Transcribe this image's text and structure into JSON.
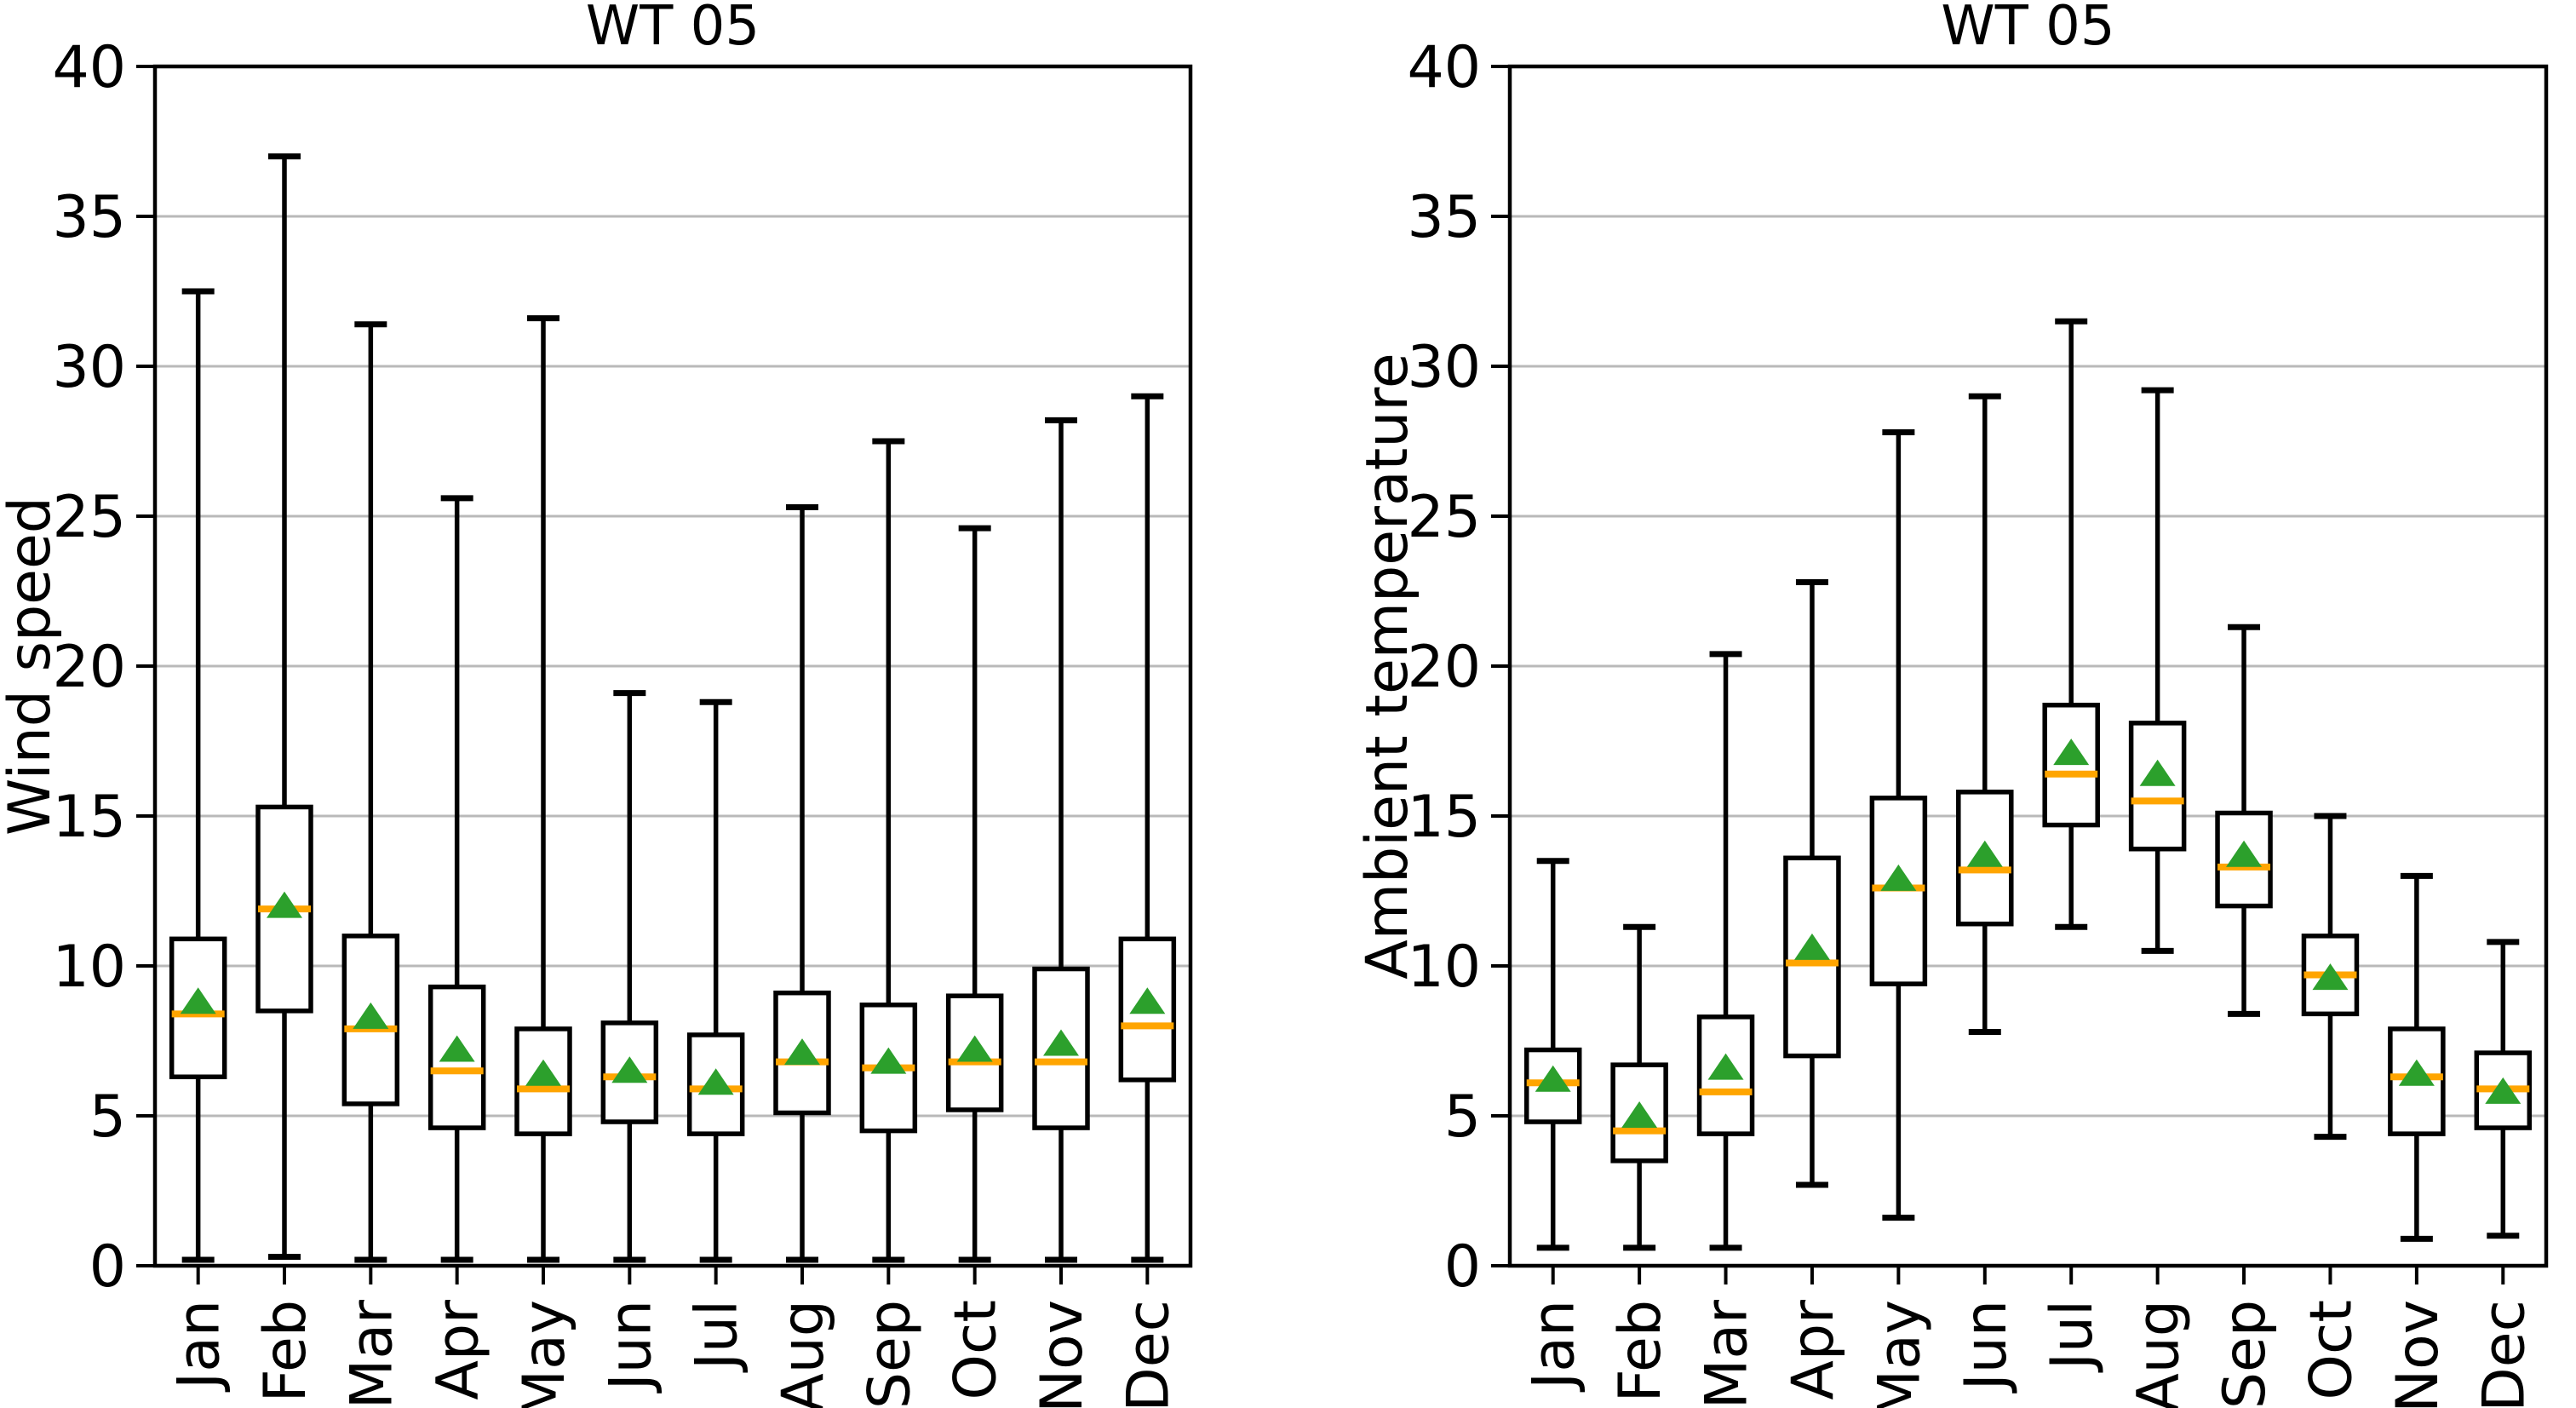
{
  "figure": {
    "background": "#ffffff",
    "titles": [
      "WT 05",
      "WT 05"
    ]
  },
  "chart_data": [
    {
      "type": "box",
      "title": "WT 05",
      "xlabel": "",
      "ylabel": "Wind speed",
      "ylim": [
        0,
        40
      ],
      "yticks": [
        0,
        5,
        10,
        15,
        20,
        25,
        30,
        35,
        40
      ],
      "grid": "horizontal",
      "legend": "none",
      "categories": [
        "Jan",
        "Feb",
        "Mar",
        "Apr",
        "May",
        "Jun",
        "Jul",
        "Aug",
        "Sep",
        "Oct",
        "Nov",
        "Dec"
      ],
      "series": [
        {
          "month": "Jan",
          "whisker_low": 0.2,
          "q1": 6.3,
          "median": 8.4,
          "mean": 8.8,
          "q3": 10.9,
          "whisker_high": 32.5
        },
        {
          "month": "Feb",
          "whisker_low": 0.3,
          "q1": 8.5,
          "median": 11.9,
          "mean": 12.0,
          "q3": 15.3,
          "whisker_high": 37.0
        },
        {
          "month": "Mar",
          "whisker_low": 0.2,
          "q1": 5.4,
          "median": 7.9,
          "mean": 8.3,
          "q3": 11.0,
          "whisker_high": 31.4
        },
        {
          "month": "Apr",
          "whisker_low": 0.2,
          "q1": 4.6,
          "median": 6.5,
          "mean": 7.2,
          "q3": 9.3,
          "whisker_high": 25.6
        },
        {
          "month": "May",
          "whisker_low": 0.2,
          "q1": 4.4,
          "median": 5.9,
          "mean": 6.4,
          "q3": 7.9,
          "whisker_high": 31.6
        },
        {
          "month": "Jun",
          "whisker_low": 0.2,
          "q1": 4.8,
          "median": 6.3,
          "mean": 6.5,
          "q3": 8.1,
          "whisker_high": 19.1
        },
        {
          "month": "Jul",
          "whisker_low": 0.2,
          "q1": 4.4,
          "median": 5.9,
          "mean": 6.1,
          "q3": 7.7,
          "whisker_high": 18.8
        },
        {
          "month": "Aug",
          "whisker_low": 0.2,
          "q1": 5.1,
          "median": 6.8,
          "mean": 7.1,
          "q3": 9.1,
          "whisker_high": 25.3
        },
        {
          "month": "Sep",
          "whisker_low": 0.2,
          "q1": 4.5,
          "median": 6.6,
          "mean": 6.8,
          "q3": 8.7,
          "whisker_high": 27.5
        },
        {
          "month": "Oct",
          "whisker_low": 0.2,
          "q1": 5.2,
          "median": 6.8,
          "mean": 7.2,
          "q3": 9.0,
          "whisker_high": 24.6
        },
        {
          "month": "Nov",
          "whisker_low": 0.2,
          "q1": 4.6,
          "median": 6.8,
          "mean": 7.4,
          "q3": 9.9,
          "whisker_high": 28.2
        },
        {
          "month": "Dec",
          "whisker_low": 0.2,
          "q1": 6.2,
          "median": 8.0,
          "mean": 8.8,
          "q3": 10.9,
          "whisker_high": 29.0
        }
      ],
      "colors": {
        "box": "#000000",
        "median": "#ffa500",
        "mean_marker": "#2ca02c",
        "grid": "#b9b9b9",
        "spine": "#000000"
      }
    },
    {
      "type": "box",
      "title": "WT 05",
      "xlabel": "",
      "ylabel": "Ambient temperature",
      "ylim": [
        0,
        40
      ],
      "yticks": [
        0,
        5,
        10,
        15,
        20,
        25,
        30,
        35,
        40
      ],
      "grid": "horizontal",
      "legend": "none",
      "categories": [
        "Jan",
        "Feb",
        "Mar",
        "Apr",
        "May",
        "Jun",
        "Jul",
        "Aug",
        "Sep",
        "Oct",
        "Nov",
        "Dec"
      ],
      "series": [
        {
          "month": "Jan",
          "whisker_low": 0.6,
          "q1": 4.8,
          "median": 6.1,
          "mean": 6.2,
          "q3": 7.2,
          "whisker_high": 13.5
        },
        {
          "month": "Feb",
          "whisker_low": 0.6,
          "q1": 3.5,
          "median": 4.5,
          "mean": 5.0,
          "q3": 6.7,
          "whisker_high": 11.3
        },
        {
          "month": "Mar",
          "whisker_low": 0.6,
          "q1": 4.4,
          "median": 5.8,
          "mean": 6.6,
          "q3": 8.3,
          "whisker_high": 20.4
        },
        {
          "month": "Apr",
          "whisker_low": 2.7,
          "q1": 7.0,
          "median": 10.1,
          "mean": 10.6,
          "q3": 13.6,
          "whisker_high": 22.8
        },
        {
          "month": "May",
          "whisker_low": 1.6,
          "q1": 9.4,
          "median": 12.6,
          "mean": 12.9,
          "q3": 15.6,
          "whisker_high": 27.8
        },
        {
          "month": "Jun",
          "whisker_low": 7.8,
          "q1": 11.4,
          "median": 13.2,
          "mean": 13.7,
          "q3": 15.8,
          "whisker_high": 29.0
        },
        {
          "month": "Jul",
          "whisker_low": 11.3,
          "q1": 14.7,
          "median": 16.4,
          "mean": 17.1,
          "q3": 18.7,
          "whisker_high": 31.5
        },
        {
          "month": "Aug",
          "whisker_low": 10.5,
          "q1": 13.9,
          "median": 15.5,
          "mean": 16.4,
          "q3": 18.1,
          "whisker_high": 29.2
        },
        {
          "month": "Sep",
          "whisker_low": 8.4,
          "q1": 12.0,
          "median": 13.3,
          "mean": 13.7,
          "q3": 15.1,
          "whisker_high": 21.3
        },
        {
          "month": "Oct",
          "whisker_low": 4.3,
          "q1": 8.4,
          "median": 9.7,
          "mean": 9.6,
          "q3": 11.0,
          "whisker_high": 15.0
        },
        {
          "month": "Nov",
          "whisker_low": 0.9,
          "q1": 4.4,
          "median": 6.3,
          "mean": 6.4,
          "q3": 7.9,
          "whisker_high": 13.0
        },
        {
          "month": "Dec",
          "whisker_low": 1.0,
          "q1": 4.6,
          "median": 5.9,
          "mean": 5.8,
          "q3": 7.1,
          "whisker_high": 10.8
        }
      ],
      "colors": {
        "box": "#000000",
        "median": "#ffa500",
        "mean_marker": "#2ca02c",
        "grid": "#b9b9b9",
        "spine": "#000000"
      }
    }
  ]
}
